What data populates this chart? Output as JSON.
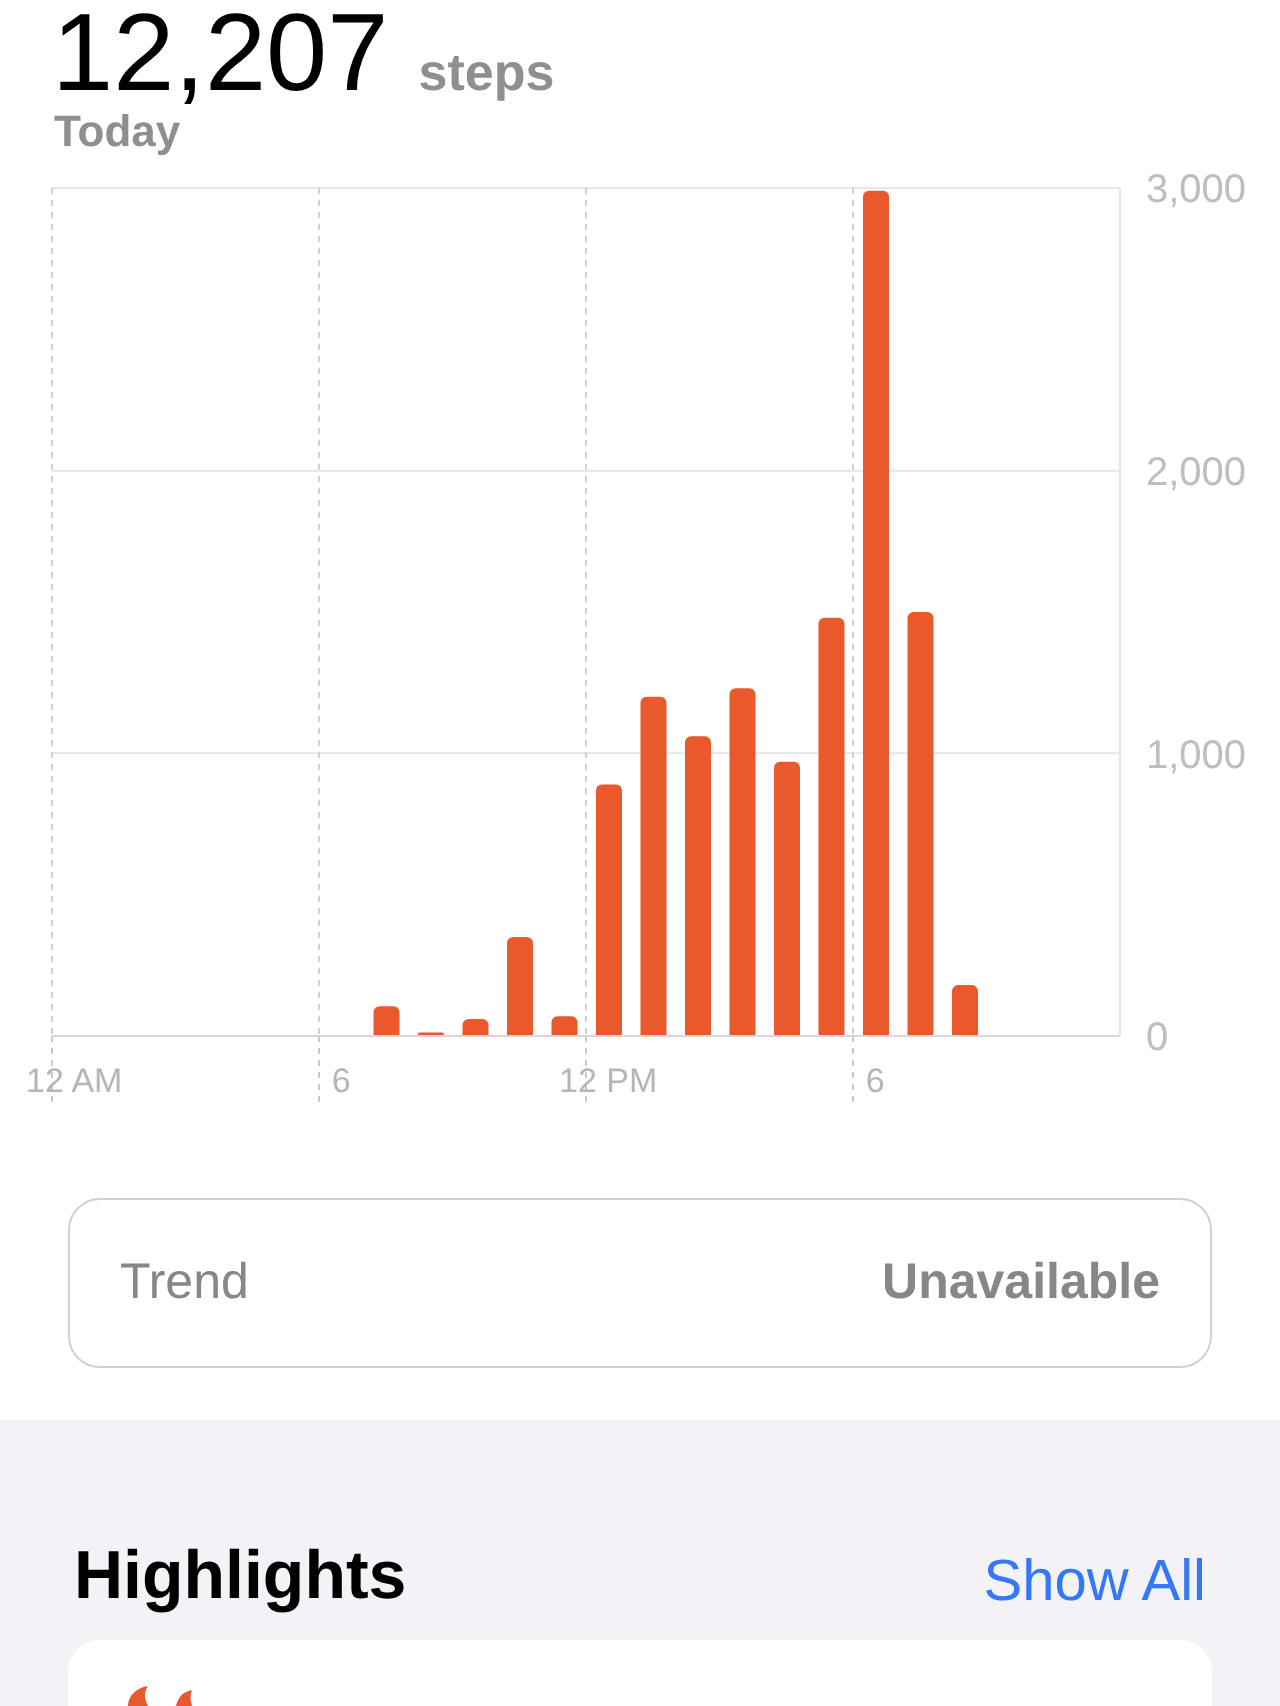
{
  "chart_data": {
    "type": "bar",
    "title": "12,207",
    "subtitle": "Today",
    "annotations": [
      "steps",
      "Trend",
      "Unavailable",
      "Highlights",
      "Show All"
    ],
    "categories": [
      "12 AM",
      null,
      null,
      null,
      null,
      null,
      "6",
      null,
      null,
      null,
      null,
      null,
      "12 PM",
      null,
      null,
      null,
      null,
      null,
      "6",
      null,
      null,
      null,
      null,
      null
    ],
    "values": [
      null,
      null,
      null,
      null,
      null,
      null,
      null,
      105,
      12,
      60,
      350,
      70,
      890,
      1200,
      1060,
      1230,
      970,
      1480,
      2990,
      1500,
      180,
      null,
      null,
      null
    ],
    "color": "#e9592c",
    "ylim": [
      0,
      3000
    ],
    "yticks": [
      0,
      {
        "value": 1000,
        "label": "1,000"
      },
      {
        "value": 2000,
        "label": "2,000"
      },
      {
        "value": 3000,
        "label": "3,000"
      }
    ],
    "grid": true
  }
}
